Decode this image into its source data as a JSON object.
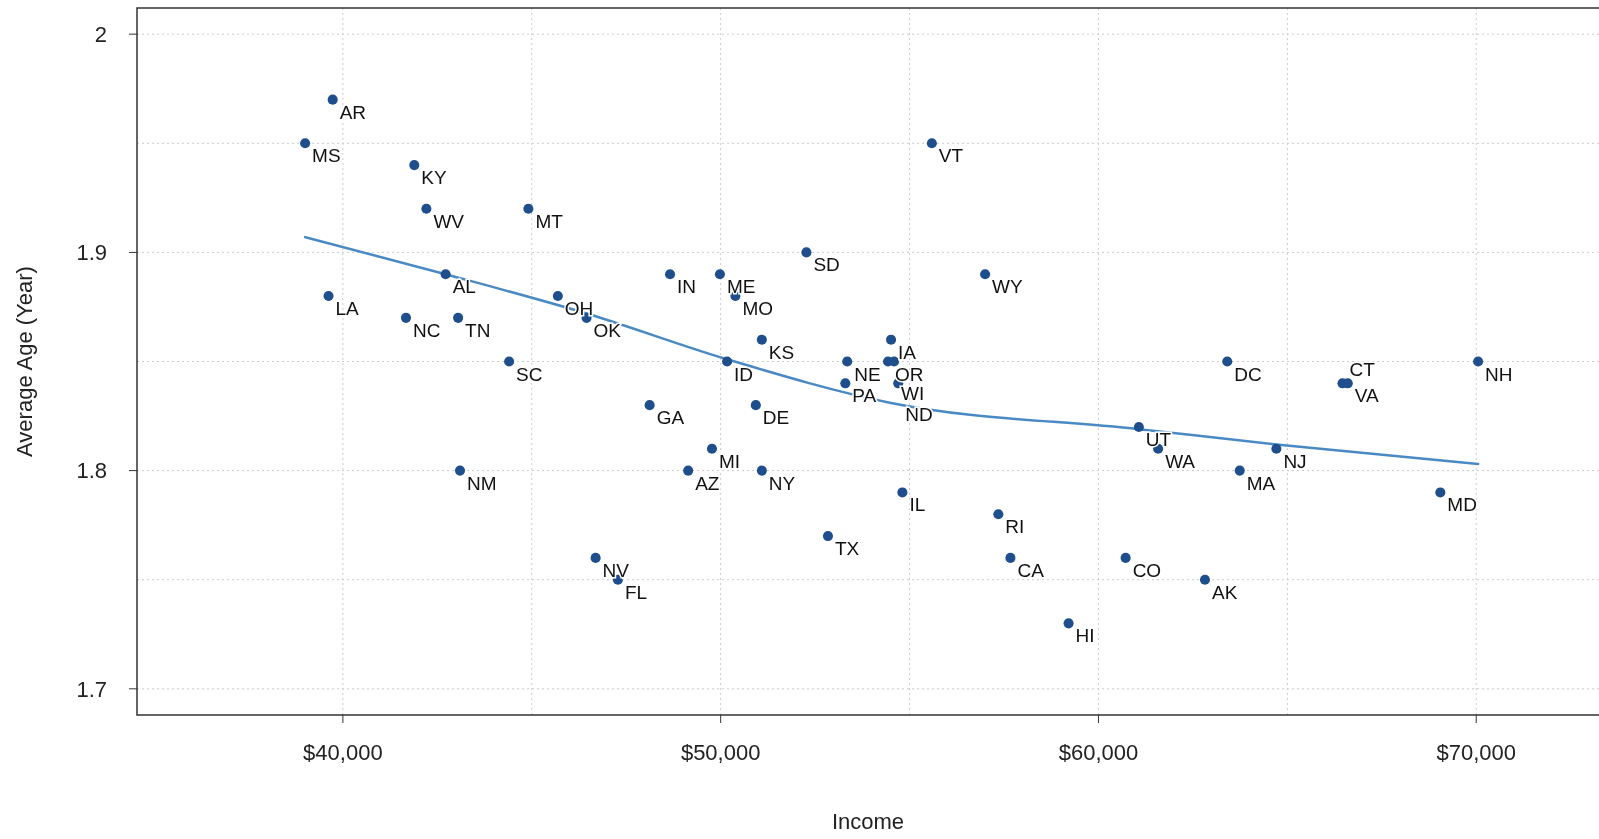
{
  "chart_data": {
    "type": "scatter",
    "xlabel": "Income",
    "ylabel": "Average Age (Year)",
    "xlim": [
      34550,
      73250
    ],
    "ylim": [
      1.688,
      2.012
    ],
    "xticks": [
      {
        "value": 40000,
        "label": "$40,000"
      },
      {
        "value": 45000,
        "label": null
      },
      {
        "value": 50000,
        "label": "$50,000"
      },
      {
        "value": 55000,
        "label": null
      },
      {
        "value": 60000,
        "label": "$60,000"
      },
      {
        "value": 65000,
        "label": null
      },
      {
        "value": 70000,
        "label": "$70,000"
      }
    ],
    "yticks": [
      1.7,
      {
        "value": 1.75,
        "label": null
      },
      1.8,
      {
        "value": 1.85,
        "label": null
      },
      1.9,
      {
        "value": 1.95,
        "label": null
      },
      2.0
    ],
    "grid": true,
    "marker": "circle",
    "series": [
      {
        "color": "#1f4e8c",
        "x": [
          39730,
          39000,
          41890,
          42210,
          44910,
          55590,
          52270,
          57000,
          48660,
          49980,
          50390,
          42720,
          39620,
          45690,
          41670,
          43050,
          46450,
          51090,
          54510,
          44400,
          50170,
          53350,
          54430,
          54590,
          63410,
          70050,
          53300,
          54700,
          66600,
          66460,
          48120,
          50930,
          61070,
          49770,
          61580,
          64710,
          43100,
          49140,
          51090,
          63740,
          54810,
          69050,
          57350,
          52840,
          46690,
          57670,
          60720,
          47280,
          62820,
          59210
        ],
        "values": [
          1.97,
          1.95,
          1.94,
          1.92,
          1.92,
          1.95,
          1.9,
          1.89,
          1.89,
          1.89,
          1.88,
          1.89,
          1.88,
          1.88,
          1.87,
          1.87,
          1.87,
          1.86,
          1.86,
          1.85,
          1.85,
          1.85,
          1.85,
          1.85,
          1.85,
          1.85,
          1.84,
          1.84,
          1.84,
          1.84,
          1.83,
          1.83,
          1.82,
          1.81,
          1.81,
          1.81,
          1.8,
          1.8,
          1.8,
          1.8,
          1.79,
          1.79,
          1.78,
          1.77,
          1.76,
          1.76,
          1.76,
          1.75,
          1.75,
          1.73
        ]
      },
      {
        "type": "line",
        "color": "#4a8ac4",
        "line_style": "solid",
        "marker": "none",
        "x": [
          39000,
          42720,
          46450,
          50170,
          54510,
          61070,
          64710,
          70050
        ],
        "values": [
          1.907,
          1.89,
          1.872,
          1.851,
          1.831,
          1.819,
          1.812,
          1.803
        ]
      }
    ],
    "annotations": [
      {
        "text": "AR",
        "x": 39730,
        "y": 1.97
      },
      {
        "text": "MS",
        "x": 39000,
        "y": 1.95
      },
      {
        "text": "KY",
        "x": 41890,
        "y": 1.94
      },
      {
        "text": "WV",
        "x": 42210,
        "y": 1.92
      },
      {
        "text": "MT",
        "x": 44910,
        "y": 1.92
      },
      {
        "text": "VT",
        "x": 55590,
        "y": 1.95
      },
      {
        "text": "SD",
        "x": 52270,
        "y": 1.9
      },
      {
        "text": "WY",
        "x": 57000,
        "y": 1.89
      },
      {
        "text": "IN",
        "x": 48660,
        "y": 1.89
      },
      {
        "text": "ME",
        "x": 49980,
        "y": 1.89
      },
      {
        "text": "MO",
        "x": 50390,
        "y": 1.88
      },
      {
        "text": "AL",
        "x": 42720,
        "y": 1.89
      },
      {
        "text": "LA",
        "x": 39620,
        "y": 1.88
      },
      {
        "text": "OH",
        "x": 45690,
        "y": 1.88
      },
      {
        "text": "NC",
        "x": 41670,
        "y": 1.87
      },
      {
        "text": "TN",
        "x": 43050,
        "y": 1.87
      },
      {
        "text": "OK",
        "x": 46450,
        "y": 1.87
      },
      {
        "text": "KS",
        "x": 51090,
        "y": 1.86
      },
      {
        "text": "IA",
        "x": 54510,
        "y": 1.86
      },
      {
        "text": "SC",
        "x": 44400,
        "y": 1.85
      },
      {
        "text": "ID",
        "x": 50170,
        "y": 1.85
      },
      {
        "text": "NE",
        "x": 53350,
        "y": 1.85
      },
      {
        "text": "OR",
        "x": 54430,
        "y": 1.85
      },
      {
        "text": "WI",
        "x": 54590,
        "y": 1.85
      },
      {
        "text": "DC",
        "x": 63410,
        "y": 1.85
      },
      {
        "text": "NH",
        "x": 70050,
        "y": 1.85
      },
      {
        "text": "PA",
        "x": 53300,
        "y": 1.84
      },
      {
        "text": "ND",
        "x": 54700,
        "y": 1.84
      },
      {
        "text": "VA",
        "x": 66600,
        "y": 1.84
      },
      {
        "text": "CT",
        "x": 66460,
        "y": 1.84
      },
      {
        "text": "GA",
        "x": 48120,
        "y": 1.83
      },
      {
        "text": "DE",
        "x": 50930,
        "y": 1.83
      },
      {
        "text": "UT",
        "x": 61070,
        "y": 1.82
      },
      {
        "text": "MI",
        "x": 49770,
        "y": 1.81
      },
      {
        "text": "WA",
        "x": 61580,
        "y": 1.81
      },
      {
        "text": "NJ",
        "x": 64710,
        "y": 1.81
      },
      {
        "text": "NM",
        "x": 43100,
        "y": 1.8
      },
      {
        "text": "AZ",
        "x": 49140,
        "y": 1.8
      },
      {
        "text": "NY",
        "x": 51090,
        "y": 1.8
      },
      {
        "text": "MA",
        "x": 63740,
        "y": 1.8
      },
      {
        "text": "IL",
        "x": 54810,
        "y": 1.79
      },
      {
        "text": "MD",
        "x": 69050,
        "y": 1.79
      },
      {
        "text": "RI",
        "x": 57350,
        "y": 1.78
      },
      {
        "text": "TX",
        "x": 52840,
        "y": 1.77
      },
      {
        "text": "NV",
        "x": 46690,
        "y": 1.76
      },
      {
        "text": "CA",
        "x": 57670,
        "y": 1.76
      },
      {
        "text": "CO",
        "x": 60720,
        "y": 1.76
      },
      {
        "text": "FL",
        "x": 47280,
        "y": 1.75
      },
      {
        "text": "AK",
        "x": 62820,
        "y": 1.75
      },
      {
        "text": "HI",
        "x": 59210,
        "y": 1.73
      }
    ]
  }
}
